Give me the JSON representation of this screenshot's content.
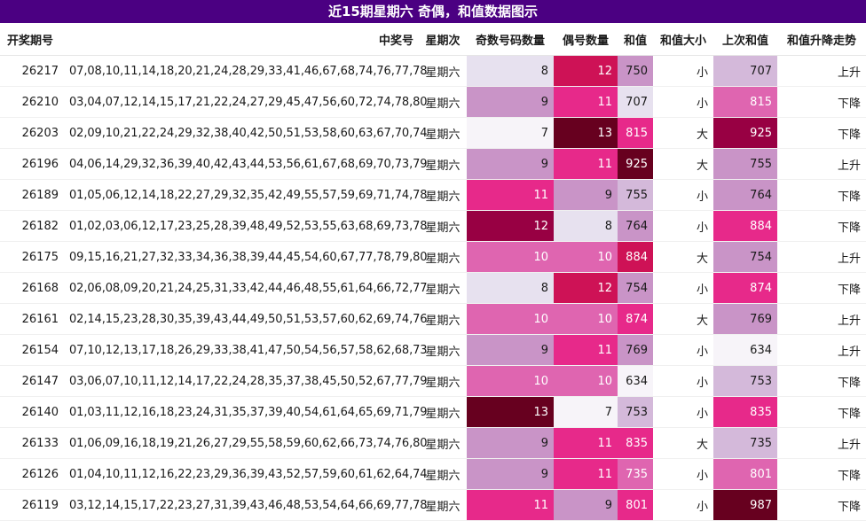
{
  "title": "近15期星期六 奇偶，和值数据图示",
  "headers": [
    "开奖期号",
    "中奖号",
    "星期次",
    "奇数号码数量",
    "偶号数量",
    "和值",
    "和值大小",
    "上次和值",
    "和值升降走势"
  ],
  "rows": [
    {
      "issue": "26217",
      "numbers": "07,08,10,11,14,18,20,21,24,28,29,33,41,46,67,68,74,76,77,78",
      "weekday": "星期六",
      "odd": 8,
      "even": 12,
      "sum": 750,
      "size": "小",
      "prev_sum": 707,
      "trend": "上升"
    },
    {
      "issue": "26210",
      "numbers": "03,04,07,12,14,15,17,21,22,24,27,29,45,47,56,60,72,74,78,80",
      "weekday": "星期六",
      "odd": 9,
      "even": 11,
      "sum": 707,
      "size": "小",
      "prev_sum": 815,
      "trend": "下降"
    },
    {
      "issue": "26203",
      "numbers": "02,09,10,21,22,24,29,32,38,40,42,50,51,53,58,60,63,67,70,74",
      "weekday": "星期六",
      "odd": 7,
      "even": 13,
      "sum": 815,
      "size": "大",
      "prev_sum": 925,
      "trend": "下降"
    },
    {
      "issue": "26196",
      "numbers": "04,06,14,29,32,36,39,40,42,43,44,53,56,61,67,68,69,70,73,79",
      "weekday": "星期六",
      "odd": 9,
      "even": 11,
      "sum": 925,
      "size": "大",
      "prev_sum": 755,
      "trend": "上升"
    },
    {
      "issue": "26189",
      "numbers": "01,05,06,12,14,18,22,27,29,32,35,42,49,55,57,59,69,71,74,78",
      "weekday": "星期六",
      "odd": 11,
      "even": 9,
      "sum": 755,
      "size": "小",
      "prev_sum": 764,
      "trend": "下降"
    },
    {
      "issue": "26182",
      "numbers": "01,02,03,06,12,17,23,25,28,39,48,49,52,53,55,63,68,69,73,78",
      "weekday": "星期六",
      "odd": 12,
      "even": 8,
      "sum": 764,
      "size": "小",
      "prev_sum": 884,
      "trend": "下降"
    },
    {
      "issue": "26175",
      "numbers": "09,15,16,21,27,32,33,34,36,38,39,44,45,54,60,67,77,78,79,80",
      "weekday": "星期六",
      "odd": 10,
      "even": 10,
      "sum": 884,
      "size": "大",
      "prev_sum": 754,
      "trend": "上升"
    },
    {
      "issue": "26168",
      "numbers": "02,06,08,09,20,21,24,25,31,33,42,44,46,48,55,61,64,66,72,77",
      "weekday": "星期六",
      "odd": 8,
      "even": 12,
      "sum": 754,
      "size": "小",
      "prev_sum": 874,
      "trend": "下降"
    },
    {
      "issue": "26161",
      "numbers": "02,14,15,23,28,30,35,39,43,44,49,50,51,53,57,60,62,69,74,76",
      "weekday": "星期六",
      "odd": 10,
      "even": 10,
      "sum": 874,
      "size": "大",
      "prev_sum": 769,
      "trend": "上升"
    },
    {
      "issue": "26154",
      "numbers": "07,10,12,13,17,18,26,29,33,38,41,47,50,54,56,57,58,62,68,73",
      "weekday": "星期六",
      "odd": 9,
      "even": 11,
      "sum": 769,
      "size": "小",
      "prev_sum": 634,
      "trend": "上升"
    },
    {
      "issue": "26147",
      "numbers": "03,06,07,10,11,12,14,17,22,24,28,35,37,38,45,50,52,67,77,79",
      "weekday": "星期六",
      "odd": 10,
      "even": 10,
      "sum": 634,
      "size": "小",
      "prev_sum": 753,
      "trend": "下降"
    },
    {
      "issue": "26140",
      "numbers": "01,03,11,12,16,18,23,24,31,35,37,39,40,54,61,64,65,69,71,79",
      "weekday": "星期六",
      "odd": 13,
      "even": 7,
      "sum": 753,
      "size": "小",
      "prev_sum": 835,
      "trend": "下降"
    },
    {
      "issue": "26133",
      "numbers": "01,06,09,16,18,19,21,26,27,29,55,58,59,60,62,66,73,74,76,80",
      "weekday": "星期六",
      "odd": 9,
      "even": 11,
      "sum": 835,
      "size": "大",
      "prev_sum": 735,
      "trend": "上升"
    },
    {
      "issue": "26126",
      "numbers": "01,04,10,11,12,16,22,23,29,36,39,43,52,57,59,60,61,62,64,74",
      "weekday": "星期六",
      "odd": 9,
      "even": 11,
      "sum": 735,
      "size": "小",
      "prev_sum": 801,
      "trend": "下降"
    },
    {
      "issue": "26119",
      "numbers": "03,12,14,15,17,22,23,27,31,39,43,46,48,53,54,64,66,69,77,78",
      "weekday": "星期六",
      "odd": 11,
      "even": 9,
      "sum": 801,
      "size": "小",
      "prev_sum": 987,
      "trend": "下降"
    }
  ],
  "heat_colors": {
    "c5": "#f7f4f9",
    "c6": "#e7e1ef",
    "c7": "#d4b9da",
    "c8": "#c994c7",
    "c9": "#df65b0",
    "c10": "#e7298a",
    "c11": "#ce1256",
    "c12": "#980043",
    "c13": "#67001f",
    "header_bg": "#4b0082"
  },
  "heat_levels": {
    "odd": {
      "7": "c5",
      "8": "c6",
      "9": "c8",
      "10": "c9",
      "11": "c10",
      "12": "c12",
      "13": "c13"
    },
    "even": {
      "7": "c5",
      "8": "c6",
      "9": "c8",
      "10": "c9",
      "11": "c10",
      "12": "c11",
      "13": "c13"
    },
    "sum": {
      "634": "c5",
      "707": "c6",
      "735": "c9",
      "750": "c8",
      "753": "c7",
      "754": "c8",
      "755": "c7",
      "764": "c8",
      "769": "c8",
      "801": "c10",
      "815": "c10",
      "835": "c10",
      "874": "c10",
      "884": "c11",
      "925": "c13"
    },
    "prev_sum": {
      "634": "c5",
      "707": "c7",
      "735": "c7",
      "753": "c7",
      "754": "c8",
      "755": "c8",
      "764": "c8",
      "769": "c8",
      "801": "c9",
      "815": "c9",
      "835": "c10",
      "874": "c10",
      "884": "c10",
      "925": "c12",
      "987": "c13"
    }
  }
}
